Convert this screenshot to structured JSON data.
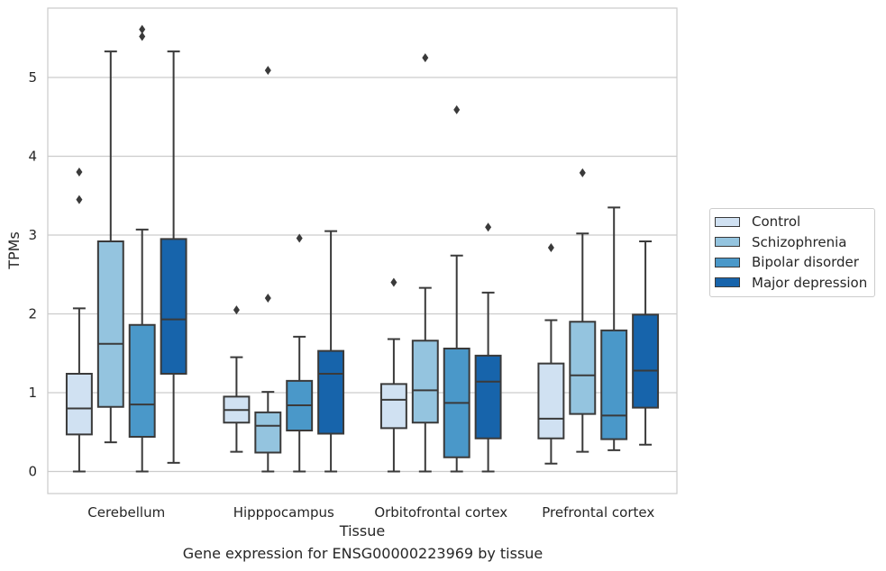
{
  "caption": "Gene expression for ENSG00000223969 by tissue",
  "chart_data": {
    "type": "box",
    "xlabel": "Tissue",
    "ylabel": "TPMs",
    "ylim": [
      -0.28,
      5.88
    ],
    "yticks": [
      0,
      1,
      2,
      3,
      4,
      5
    ],
    "grid": "horizontal",
    "legend_position": "right",
    "categories": [
      "Cerebellum",
      "Hipppocampus",
      "Orbitofrontal cortex",
      "Prefrontal cortex"
    ],
    "series": [
      {
        "name": "Control",
        "color": "#d0e1f2",
        "boxes": [
          {
            "whislo": 0.0,
            "q1": 0.47,
            "med": 0.8,
            "q3": 1.24,
            "whishi": 2.07,
            "fliers": [
              3.45,
              3.8
            ]
          },
          {
            "whislo": 0.25,
            "q1": 0.62,
            "med": 0.78,
            "q3": 0.95,
            "whishi": 1.45,
            "fliers": [
              2.05
            ]
          },
          {
            "whislo": 0.0,
            "q1": 0.55,
            "med": 0.91,
            "q3": 1.11,
            "whishi": 1.68,
            "fliers": [
              2.4
            ]
          },
          {
            "whislo": 0.1,
            "q1": 0.42,
            "med": 0.67,
            "q3": 1.37,
            "whishi": 1.92,
            "fliers": [
              2.84
            ]
          }
        ]
      },
      {
        "name": "Schizophrenia",
        "color": "#94c4df",
        "boxes": [
          {
            "whislo": 0.37,
            "q1": 0.82,
            "med": 1.62,
            "q3": 2.92,
            "whishi": 5.33,
            "fliers": []
          },
          {
            "whislo": 0.0,
            "q1": 0.24,
            "med": 0.58,
            "q3": 0.75,
            "whishi": 1.01,
            "fliers": [
              2.2,
              5.09
            ]
          },
          {
            "whislo": 0.0,
            "q1": 0.62,
            "med": 1.03,
            "q3": 1.66,
            "whishi": 2.33,
            "fliers": [
              5.25
            ]
          },
          {
            "whislo": 0.25,
            "q1": 0.73,
            "med": 1.22,
            "q3": 1.9,
            "whishi": 3.02,
            "fliers": [
              3.79
            ]
          }
        ]
      },
      {
        "name": "Bipolar disorder",
        "color": "#4a98c9",
        "boxes": [
          {
            "whislo": 0.0,
            "q1": 0.44,
            "med": 0.85,
            "q3": 1.86,
            "whishi": 3.07,
            "fliers": [
              5.52,
              5.61
            ]
          },
          {
            "whislo": 0.0,
            "q1": 0.52,
            "med": 0.84,
            "q3": 1.15,
            "whishi": 1.71,
            "fliers": [
              2.96
            ]
          },
          {
            "whislo": 0.0,
            "q1": 0.18,
            "med": 0.87,
            "q3": 1.56,
            "whishi": 2.74,
            "fliers": [
              4.59
            ]
          },
          {
            "whislo": 0.27,
            "q1": 0.41,
            "med": 0.71,
            "q3": 1.79,
            "whishi": 3.35,
            "fliers": []
          }
        ]
      },
      {
        "name": "Major depression",
        "color": "#1764ab",
        "boxes": [
          {
            "whislo": 0.11,
            "q1": 1.24,
            "med": 1.93,
            "q3": 2.95,
            "whishi": 5.33,
            "fliers": []
          },
          {
            "whislo": 0.0,
            "q1": 0.48,
            "med": 1.24,
            "q3": 1.53,
            "whishi": 3.05,
            "fliers": []
          },
          {
            "whislo": 0.0,
            "q1": 0.42,
            "med": 1.14,
            "q3": 1.47,
            "whishi": 2.27,
            "fliers": [
              3.1
            ]
          },
          {
            "whislo": 0.34,
            "q1": 0.81,
            "med": 1.28,
            "q3": 1.99,
            "whishi": 2.92,
            "fliers": []
          }
        ]
      }
    ]
  }
}
